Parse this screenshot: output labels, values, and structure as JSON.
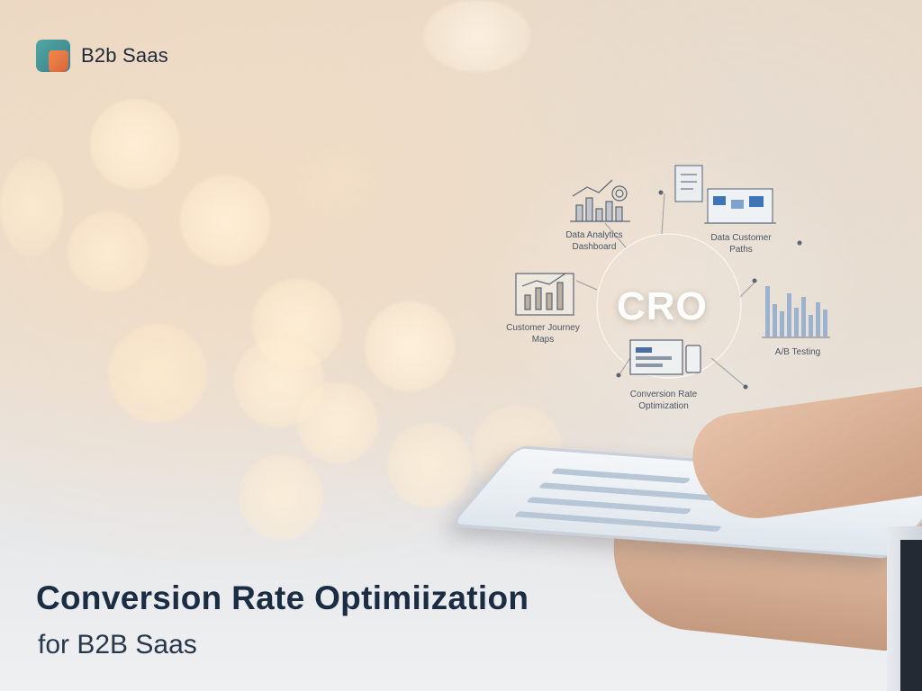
{
  "brand": {
    "name": "B2b Saas"
  },
  "diagram": {
    "center_label": "CRO",
    "nodes": [
      {
        "id": "data-analytics",
        "label_line1": "Data Analytics",
        "label_line2": "Dashboard"
      },
      {
        "id": "data-customer",
        "label_line1": "Data Customer",
        "label_line2": "Paths"
      },
      {
        "id": "customer-journey",
        "label_line1": "Customer Journey",
        "label_line2": "Maps"
      },
      {
        "id": "ab-testing",
        "label_line1": "A/B Testing",
        "label_line2": ""
      },
      {
        "id": "conversion-rate",
        "label_line1": "Conversion Rate",
        "label_line2": "Optimization"
      }
    ]
  },
  "headline": {
    "title": "Conversion Rate Optimiization",
    "subtitle": "for B2B Saas"
  },
  "colors": {
    "brand_teal": "#4fa7a0",
    "brand_orange": "#f08a4b",
    "headline_navy": "#1b2d44"
  }
}
